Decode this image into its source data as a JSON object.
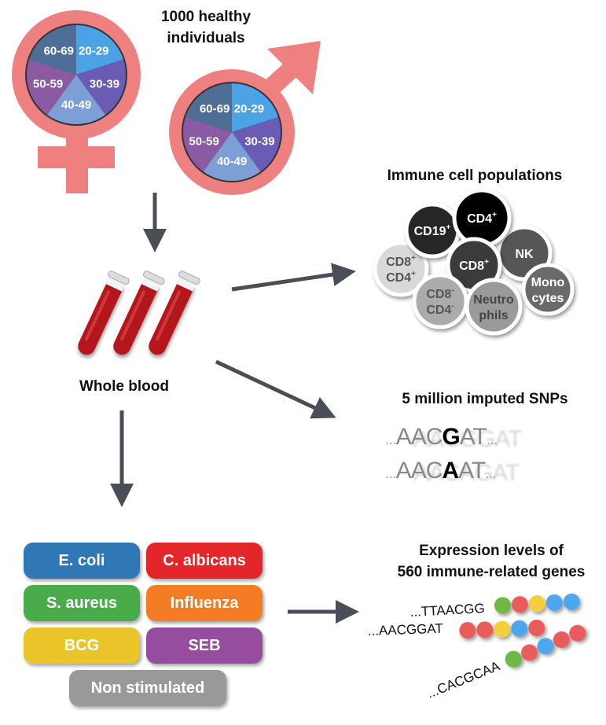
{
  "cohort": {
    "title_line1": "1000 healthy individuals",
    "title_line2": "individuals",
    "age_groups": [
      "20-29",
      "30-39",
      "40-49",
      "50-59",
      "60-69"
    ],
    "age_colors": [
      "#4ba3e6",
      "#6a5bb4",
      "#7c9fd5",
      "#8a5aa3",
      "#4e6e98"
    ],
    "symbol_color": "#ee8080"
  },
  "sample": {
    "label": "Whole blood"
  },
  "immune": {
    "title": "Immune cell populations",
    "cells": [
      {
        "l1": "CD8",
        "s1": "+",
        "l2": "CD4",
        "s2": "+",
        "fill": "#d9d9d9",
        "text": "#555"
      },
      {
        "l1": "CD19",
        "s1": "+",
        "fill": "#262626",
        "text": "#fff"
      },
      {
        "l1": "NK",
        "fill": "#575757",
        "text": "#fff"
      },
      {
        "l1": "CD4",
        "s1": "+",
        "fill": "#000000",
        "text": "#fff"
      },
      {
        "l1": "CD8",
        "s1": "+",
        "fill": "#3b3b3b",
        "text": "#fff"
      },
      {
        "l1": "Mono",
        "l2": "cytes",
        "fill": "#6b6b6b",
        "text": "#fff"
      },
      {
        "l1": "CD8",
        "s1": "-",
        "l2": "CD4",
        "s2": "-",
        "fill": "#ababab",
        "text": "#555"
      },
      {
        "l1": "Neutro",
        "l2": "phils",
        "fill": "#9a9a9a",
        "text": "#444"
      }
    ]
  },
  "snps": {
    "title": "5 million imputed SNPs",
    "seq1": {
      "pre": "AAC",
      "snp": "G",
      "post": "AT"
    },
    "seq2": {
      "pre": "AAC",
      "snp": "A",
      "post": "AT"
    },
    "ellipsis": "..."
  },
  "stimuli": [
    {
      "label": "E. coli",
      "color": "#2f78b5"
    },
    {
      "label": "C. albicans",
      "color": "#e4262b"
    },
    {
      "label": "S. aureus",
      "color": "#4aab49"
    },
    {
      "label": "Influenza",
      "color": "#f47c24"
    },
    {
      "label": "BCG",
      "color": "#e9c529"
    },
    {
      "label": "SEB",
      "color": "#964da0"
    },
    {
      "label": "Non stimulated",
      "color": "#999999"
    }
  ],
  "expression": {
    "title_line1": "Expression levels of",
    "title_line2": "560 immune-related genes",
    "rows": [
      {
        "seq": "...TTAACGG",
        "beads": [
          "#6cb944",
          "#e95c5c",
          "#f3cf3d",
          "#4ea6ee",
          "#4ea6ee"
        ]
      },
      {
        "seq": "...AACGGAT",
        "beads": [
          "#e95c5c",
          "#e95c5c",
          "#f3cf3d",
          "#4ea6ee",
          "#e95c5c"
        ]
      },
      {
        "seq": "...CACGCAA",
        "beads": [
          "#6cb944",
          "#e95c5c",
          "#4ea6ee",
          "#e95c5c",
          "#e95c5c"
        ]
      }
    ]
  },
  "arrow_color": "#4a4f57"
}
